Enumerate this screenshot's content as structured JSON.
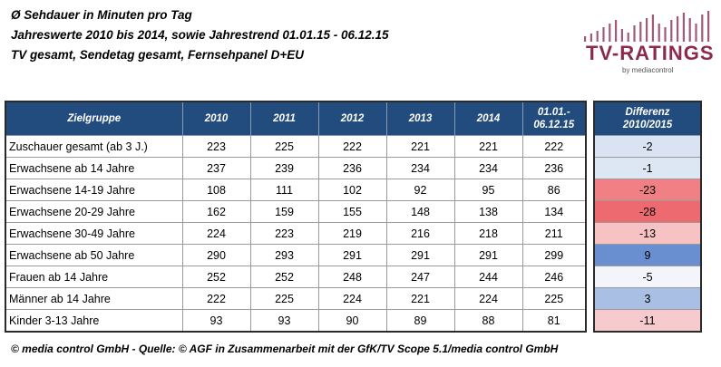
{
  "header": {
    "title": "Ø Sehdauer in Minuten pro Tag",
    "subtitle": "Jahreswerte 2010 bis 2014, sowie Jahrestrend 01.01.15 - 06.12.15",
    "scope": "TV gesamt, Sendetag gesamt, Fernsehpanel D+EU"
  },
  "logo": {
    "brand": "TV-RATINGS",
    "byline": "by mediacontrol",
    "bar_color": "#a05a78"
  },
  "table": {
    "columns": [
      "Zielgruppe",
      "2010",
      "2011",
      "2012",
      "2013",
      "2014",
      "01.01.-\n06.12.15"
    ],
    "rows": [
      {
        "label": "Zuschauer gesamt (ab 3 J.)",
        "values": [
          "223",
          "225",
          "222",
          "221",
          "221",
          "222"
        ]
      },
      {
        "label": "Erwachsene ab 14 Jahre",
        "values": [
          "237",
          "239",
          "236",
          "234",
          "234",
          "236"
        ]
      },
      {
        "label": "Erwachsene 14-19 Jahre",
        "values": [
          "108",
          "111",
          "102",
          "92",
          "95",
          "86"
        ]
      },
      {
        "label": "Erwachsene 20-29 Jahre",
        "values": [
          "162",
          "159",
          "155",
          "148",
          "138",
          "134"
        ]
      },
      {
        "label": "Erwachsene 30-49 Jahre",
        "values": [
          "224",
          "223",
          "219",
          "216",
          "218",
          "211"
        ]
      },
      {
        "label": "Erwachsene ab 50 Jahre",
        "values": [
          "290",
          "293",
          "291",
          "291",
          "291",
          "299"
        ]
      },
      {
        "label": "Frauen ab 14 Jahre",
        "values": [
          "252",
          "252",
          "248",
          "247",
          "244",
          "246"
        ]
      },
      {
        "label": "Männer ab 14 Jahre",
        "values": [
          "222",
          "225",
          "224",
          "221",
          "224",
          "225"
        ]
      },
      {
        "label": "Kinder 3-13 Jahre",
        "values": [
          "93",
          "93",
          "90",
          "89",
          "88",
          "81"
        ]
      }
    ]
  },
  "diff": {
    "header": "Differenz\n2010/2015",
    "values": [
      {
        "value": "-2",
        "color": "#d9e3f2"
      },
      {
        "value": "-1",
        "color": "#dde6f3"
      },
      {
        "value": "-23",
        "color": "#f08084"
      },
      {
        "value": "-28",
        "color": "#ec6a70"
      },
      {
        "value": "-13",
        "color": "#f6c2c4"
      },
      {
        "value": "9",
        "color": "#6a8fd0"
      },
      {
        "value": "-5",
        "color": "#f3f5fb"
      },
      {
        "value": "3",
        "color": "#a9bfe3"
      },
      {
        "value": "-11",
        "color": "#f7cbcd"
      }
    ]
  },
  "colors": {
    "header_bg": "#234c7e",
    "header_text": "#ffffff"
  },
  "footer": "© media control GmbH - Quelle: © AGF in Zusammenarbeit mit der GfK/TV Scope 5.1/media control GmbH"
}
